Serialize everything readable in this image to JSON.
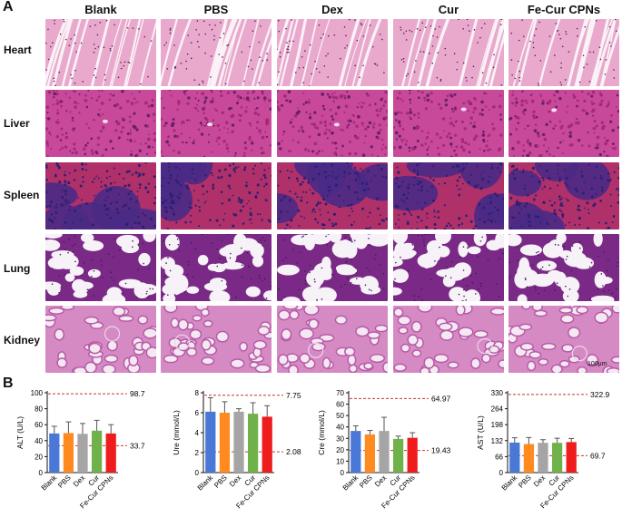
{
  "panels": {
    "a_label": "A",
    "b_label": "B"
  },
  "columns": [
    "Blank",
    "PBS",
    "Dex",
    "Cur",
    "Fe-Cur CPNs"
  ],
  "rows": [
    {
      "label": "Heart",
      "kind": "heart",
      "colors": [
        "#e8a9cc",
        "#c0508a",
        "#faf2f7"
      ]
    },
    {
      "label": "Liver",
      "kind": "liver",
      "colors": [
        "#a42a78",
        "#c8489a",
        "#6a1f6a"
      ]
    },
    {
      "label": "Spleen",
      "kind": "spleen",
      "colors": [
        "#4a2a86",
        "#b0306a",
        "#2c2070"
      ]
    },
    {
      "label": "Lung",
      "kind": "lung",
      "colors": [
        "#f7f2f7",
        "#7a2a86",
        "#a14a9e"
      ]
    },
    {
      "label": "Kidney",
      "kind": "kidney",
      "colors": [
        "#b85aa8",
        "#d68ac4",
        "#f4e8f2"
      ]
    }
  ],
  "scale_bar_text": "100μm",
  "chart_data": [
    {
      "type": "bar",
      "categories": [
        "Blank",
        "PBS",
        "Dex",
        "Cur",
        "Fe-Cur CPNs"
      ],
      "values": [
        49,
        49.5,
        48.5,
        52.5,
        49
      ],
      "errors": [
        9,
        14,
        13,
        13,
        11
      ],
      "ylabel": "ALT (U/L)",
      "ylim": [
        0,
        100
      ],
      "yticks": [
        "0",
        "20",
        "40",
        "60",
        "80",
        "100"
      ],
      "ytick_values": [
        0,
        20,
        40,
        60,
        80,
        100
      ],
      "ref_upper": 98.7,
      "ref_upper_label": "98.7",
      "ref_lower": 33.7,
      "ref_lower_label": "33.7"
    },
    {
      "type": "bar",
      "categories": [
        "Blank",
        "PBS",
        "Dex",
        "Cur",
        "Fe-Cur CPNs"
      ],
      "values": [
        6.1,
        6.0,
        6.1,
        5.9,
        5.6
      ],
      "errors": [
        1.4,
        1.1,
        0.3,
        1.1,
        1.1
      ],
      "ylabel": "Ure (mmol/L)",
      "ylim": [
        0,
        8
      ],
      "yticks": [
        "0",
        "2",
        "4",
        "6",
        "8"
      ],
      "ytick_values": [
        0,
        2,
        4,
        6,
        8
      ],
      "ref_upper": 7.75,
      "ref_upper_label": "7.75",
      "ref_lower": 2.08,
      "ref_lower_label": "2.08"
    },
    {
      "type": "bar",
      "categories": [
        "Blank",
        "PBS",
        "Dex",
        "Cur",
        "Fe-Cur CPNs"
      ],
      "values": [
        36.5,
        33.5,
        36.5,
        29.5,
        30.5
      ],
      "errors": [
        4.5,
        3.5,
        12,
        2.5,
        4.5
      ],
      "ylabel": "Cre (mmol/L)",
      "ylim": [
        0,
        70
      ],
      "yticks": [
        "0",
        "10",
        "20",
        "30",
        "40",
        "50",
        "60",
        "70"
      ],
      "ytick_values": [
        0,
        10,
        20,
        30,
        40,
        50,
        60,
        70
      ],
      "ref_upper": 64.97,
      "ref_upper_label": "64.97",
      "ref_lower": 19.43,
      "ref_lower_label": "19.43"
    },
    {
      "type": "bar",
      "categories": [
        "Blank",
        "PBS",
        "Dex",
        "Cur",
        "Fe-Cur CPNs"
      ],
      "values": [
        124,
        118,
        123,
        123,
        126
      ],
      "errors": [
        20,
        27,
        13,
        19,
        15
      ],
      "ylabel": "AST (U/L)",
      "ylim": [
        0,
        330
      ],
      "yticks": [
        "0",
        "66",
        "132",
        "198",
        "264",
        "330"
      ],
      "ytick_values": [
        0,
        66,
        132,
        198,
        264,
        330
      ],
      "ref_upper": 322.9,
      "ref_upper_label": "322.9",
      "ref_lower": 69.7,
      "ref_lower_label": "69.7"
    }
  ],
  "bar_colors": [
    "#4a78d6",
    "#ff8a1f",
    "#a5a5a5",
    "#70b24a",
    "#ee1c1c"
  ],
  "ref_line_color": "#c0392b"
}
